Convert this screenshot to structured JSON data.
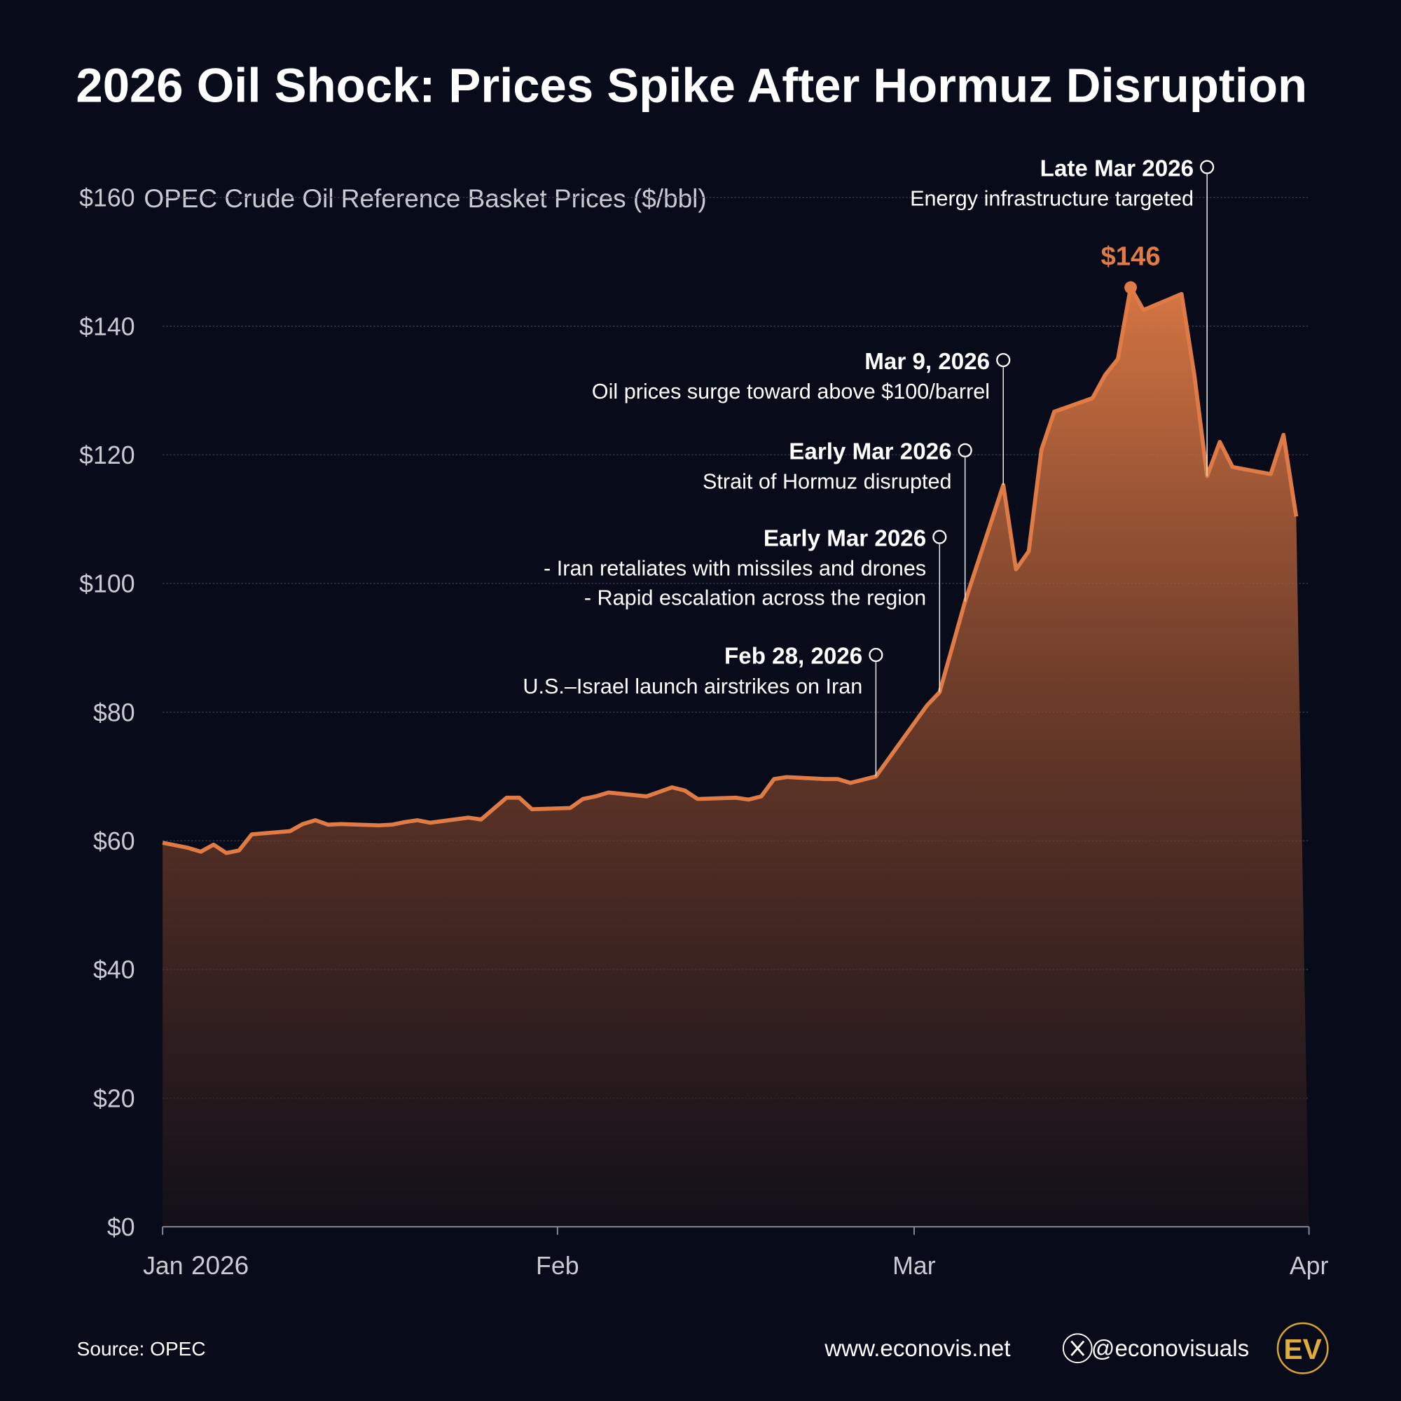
{
  "chart_data": {
    "type": "area",
    "title": "2026 Oil Shock: Prices Spike After Hormuz Disruption",
    "y_axis_label": "OPEC Crude Oil Reference Basket Prices ($/bbl)",
    "color": "#e07b45",
    "x": [
      0,
      2,
      3,
      4,
      5,
      6,
      7,
      10,
      11,
      12,
      13,
      14,
      17,
      18,
      19,
      20,
      21,
      24,
      25,
      27,
      28,
      29,
      32,
      33,
      34,
      35,
      38,
      40,
      41,
      42,
      45,
      46,
      47,
      48,
      49,
      52,
      53,
      54,
      56,
      60,
      61,
      63,
      66,
      67,
      68,
      69,
      70,
      73,
      74,
      75,
      76,
      77,
      80,
      81,
      82,
      83,
      84,
      87,
      88,
      89
    ],
    "values": [
      59.7,
      58.9,
      58.3,
      59.4,
      58.1,
      58.5,
      61.0,
      61.5,
      62.6,
      63.2,
      62.5,
      62.6,
      62.4,
      62.5,
      62.9,
      63.2,
      62.8,
      63.6,
      63.3,
      66.7,
      66.7,
      64.9,
      65.1,
      66.5,
      66.9,
      67.5,
      66.9,
      68.3,
      67.8,
      66.5,
      66.7,
      66.4,
      66.9,
      69.6,
      69.9,
      69.6,
      69.6,
      69.0,
      70.0,
      81.0,
      83.1,
      97.2,
      115.3,
      102.2,
      105.0,
      120.8,
      126.7,
      128.8,
      132.4,
      134.9,
      146.0,
      142.5,
      145.0,
      132.4,
      116.7,
      122.0,
      118.1,
      117.0,
      123.1,
      110.4
    ],
    "value_labels": [
      null,
      null,
      null,
      null,
      null,
      null,
      null,
      null,
      null,
      null,
      null,
      null,
      null,
      null,
      null,
      null,
      null,
      null,
      null,
      null,
      null,
      null,
      null,
      null,
      null,
      null,
      null,
      null,
      null,
      null,
      null,
      null,
      null,
      null,
      null,
      null,
      null,
      null,
      null,
      null,
      null,
      null,
      null,
      null,
      null,
      null,
      null,
      null,
      null,
      null,
      "$146",
      null,
      null,
      null,
      null,
      null,
      null,
      null,
      null,
      null
    ],
    "xlim": [
      0,
      90
    ],
    "xticks": [
      {
        "value": 0,
        "label": "Jan"
      },
      {
        "value": 31,
        "label": "Feb"
      },
      {
        "value": 59,
        "label": "Mar"
      },
      {
        "value": 90,
        "label": "Apr"
      }
    ],
    "x_year_label": "2026",
    "ylim": [
      0,
      160
    ],
    "yticks": [
      {
        "value": 0,
        "label": "$0"
      },
      {
        "value": 20,
        "label": "$20"
      },
      {
        "value": 40,
        "label": "$40"
      },
      {
        "value": 60,
        "label": "$60"
      },
      {
        "value": 80,
        "label": "$80"
      },
      {
        "value": 100,
        "label": "$100"
      },
      {
        "value": 120,
        "label": "$120"
      },
      {
        "value": 140,
        "label": "$140"
      },
      {
        "value": 160,
        "label": "$160"
      }
    ],
    "grid": true,
    "annotations": [
      {
        "x": 56,
        "title": "Feb 28, 2026",
        "lines": [
          "U.S.–Israel launch airstrikes on Iran"
        ]
      },
      {
        "x": 61,
        "title": "Early Mar 2026",
        "lines": [
          "- Iran retaliates with missiles and drones",
          "- Rapid escalation across the region"
        ]
      },
      {
        "x": 63,
        "title": "Early Mar 2026",
        "lines": [
          "Strait of Hormuz disrupted"
        ]
      },
      {
        "x": 66,
        "title": "Mar 9, 2026",
        "lines": [
          "Oil prices surge toward above $100/barrel"
        ]
      },
      {
        "x": 82,
        "title": "Late Mar 2026",
        "lines": [
          "Energy infrastructure targeted"
        ]
      }
    ]
  },
  "footer": {
    "source": "Source: OPEC",
    "website": "www.econovis.net",
    "handle": "@econovisuals",
    "logo": "EV"
  }
}
